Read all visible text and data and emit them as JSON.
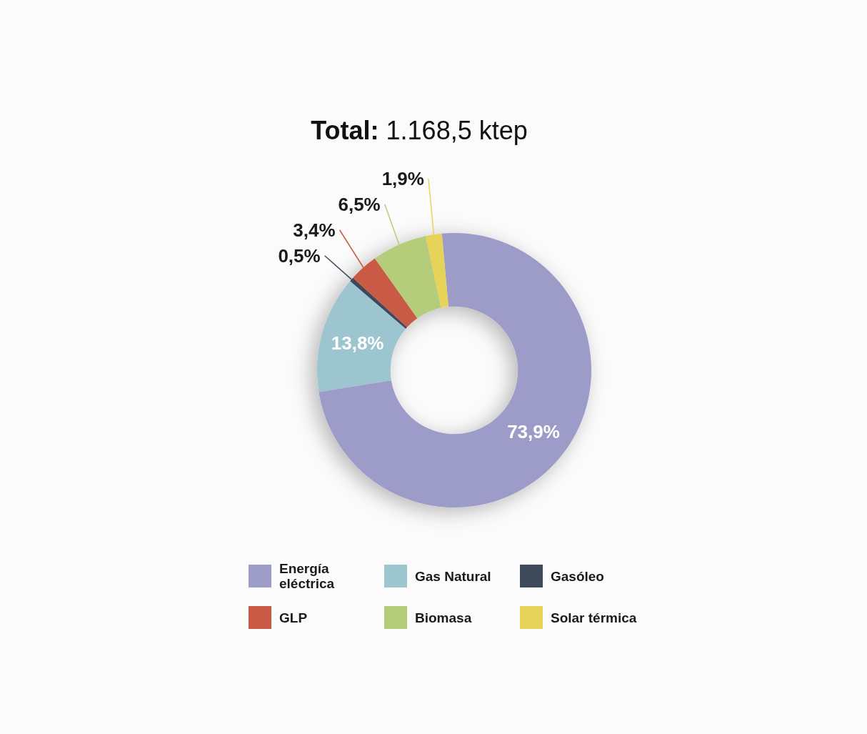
{
  "chart_data": {
    "type": "donut",
    "title": "Total: 1.168,5 ktep",
    "categories": [
      "Energía eléctrica",
      "Gas Natural",
      "Gasóleo",
      "GLP",
      "Biomasa",
      "Solar térmica"
    ],
    "values": [
      73.9,
      13.8,
      0.5,
      3.4,
      6.5,
      1.9
    ],
    "colors": [
      "#9d9bc8",
      "#9cc5cf",
      "#3d4859",
      "#c95a45",
      "#b5cc7a",
      "#e8d35a"
    ],
    "value_labels": [
      "73,9%",
      "13,8%",
      "0,5%",
      "3,4%",
      "6,5%",
      "1,9%"
    ],
    "legend": "bottom"
  }
}
